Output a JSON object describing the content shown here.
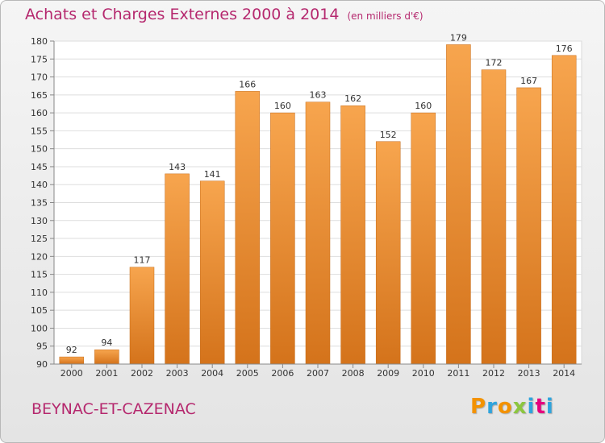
{
  "header": {
    "title": "Achats et Charges Externes 2000 à 2014",
    "unit": "(en milliers d'€)"
  },
  "footer": {
    "commune": "BEYNAC-ET-CAZENAC",
    "brand": "Proxiti"
  },
  "colors": {
    "title": "#b5286e",
    "bar_light": "#f7a54e",
    "bar_dark": "#d4731b",
    "brand_letters": [
      "#f39200",
      "#2fa4dd",
      "#f39200",
      "#8cc63f",
      "#2fa4dd",
      "#e6007e",
      "#2fa4dd"
    ]
  },
  "chart_data": {
    "type": "bar",
    "title": "Achats et Charges Externes 2000 à 2014",
    "subtitle": "(en milliers d'€)",
    "xlabel": "",
    "ylabel": "",
    "categories": [
      "2000",
      "2001",
      "2002",
      "2003",
      "2004",
      "2005",
      "2006",
      "2007",
      "2008",
      "2009",
      "2010",
      "2011",
      "2012",
      "2013",
      "2014"
    ],
    "values": [
      92,
      94,
      117,
      143,
      141,
      166,
      160,
      163,
      162,
      152,
      160,
      179,
      172,
      167,
      176
    ],
    "ylim": [
      90,
      180
    ],
    "yticks": [
      90,
      95,
      100,
      105,
      110,
      115,
      120,
      125,
      130,
      135,
      140,
      145,
      150,
      155,
      160,
      165,
      170,
      175,
      180
    ],
    "grid": true,
    "data_labels": true
  }
}
